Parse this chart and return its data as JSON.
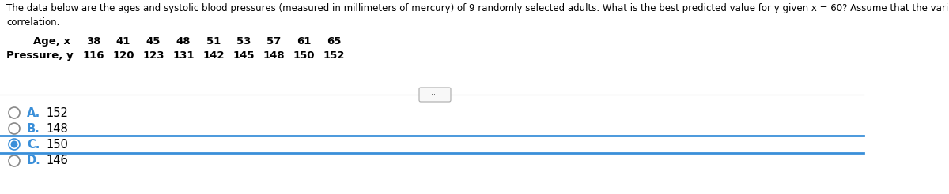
{
  "question_line1": "The data below are the ages and systolic blood pressures (measured in millimeters of mercury) of 9 randomly selected adults. What is the best predicted value for y given x = 60? Assume that the variables x and y have a significant",
  "question_line2": "correlation.",
  "row1_label": "Age, x",
  "row1_values": [
    "38",
    "41",
    "45",
    "48",
    "51",
    "53",
    "57",
    "61",
    "65"
  ],
  "row2_label": "Pressure, y",
  "row2_values": [
    "116",
    "120",
    "123",
    "131",
    "142",
    "145",
    "148",
    "150",
    "152"
  ],
  "options": [
    "A.",
    "B.",
    "C.",
    "D."
  ],
  "option_values": [
    "152",
    "148",
    "150",
    "146"
  ],
  "selected_option": 2,
  "bg_color": "#ffffff",
  "text_color": "#000000",
  "highlight_color": "#3a8fd9",
  "option_text_color": "#000000",
  "divider_color": "#c8c8c8",
  "font_size_question": 8.5,
  "font_size_data": 9.5,
  "font_size_options": 10.5
}
